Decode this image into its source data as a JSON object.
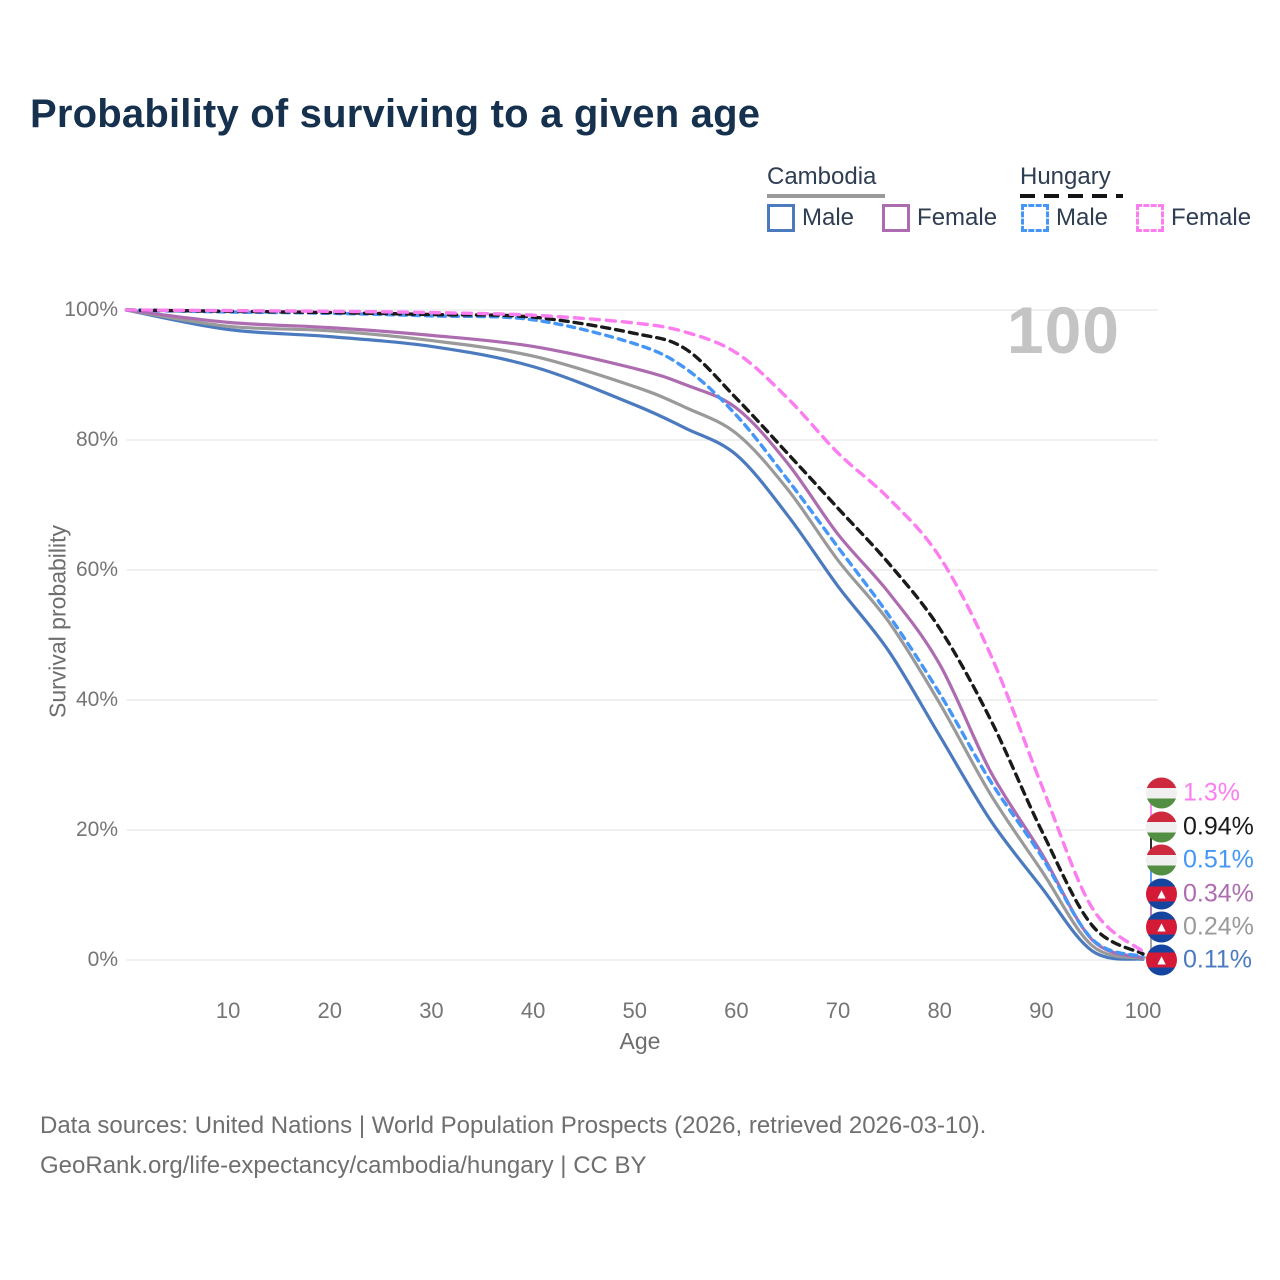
{
  "title": "Probability of surviving to a given age",
  "watermark_age": "100",
  "legend": {
    "groups": [
      {
        "name": "Cambodia",
        "underline_style": "solid",
        "items": [
          {
            "label": "Male",
            "color": "#4b7bbe",
            "dashed": false
          },
          {
            "label": "Female",
            "color": "#ad6cb0",
            "dashed": false
          }
        ]
      },
      {
        "name": "Hungary",
        "underline_style": "dashed",
        "items": [
          {
            "label": "Male",
            "color": "#4596f7",
            "dashed": true
          },
          {
            "label": "Female",
            "color": "#fb7df0",
            "dashed": true
          }
        ]
      }
    ]
  },
  "axes": {
    "x": {
      "label": "Age",
      "ticks": [
        10,
        20,
        30,
        40,
        50,
        60,
        70,
        80,
        90,
        100
      ],
      "range": [
        0,
        100
      ]
    },
    "y": {
      "label": "Survival probability",
      "ticks": [
        "0%",
        "20%",
        "40%",
        "60%",
        "80%",
        "100%"
      ],
      "range": [
        0,
        100
      ],
      "grid": true
    }
  },
  "chart_data": {
    "type": "line",
    "title": "Probability of surviving to a given age",
    "xlabel": "Age",
    "ylabel": "Survival probability",
    "xlim": [
      0,
      100
    ],
    "ylim": [
      0,
      100
    ],
    "grid": "horizontal-only",
    "legend_position": "top-right",
    "x": [
      0,
      10,
      20,
      30,
      40,
      50,
      55,
      60,
      65,
      70,
      75,
      80,
      85,
      90,
      95,
      100
    ],
    "series": [
      {
        "name": "Cambodia Male",
        "color": "#4b7bbe",
        "style": "solid",
        "values": [
          100,
          97.0,
          95.9,
          94.4,
          91.3,
          85.4,
          81.8,
          77.7,
          68.5,
          57.5,
          47.5,
          34.5,
          21.5,
          11.2,
          1.4,
          0.11
        ],
        "end_label": "0.11%",
        "flag": "cambodia"
      },
      {
        "name": "Cambodia Total",
        "color": "#9a9a9a",
        "style": "solid",
        "values": [
          100,
          97.5,
          96.8,
          95.3,
          92.9,
          88.2,
          85.0,
          81.0,
          72.5,
          61.5,
          52.0,
          39.5,
          25.5,
          13.8,
          2.2,
          0.24
        ],
        "end_label": "0.24%",
        "flag": "cambodia"
      },
      {
        "name": "Cambodia Female",
        "color": "#ad6cb0",
        "style": "solid",
        "values": [
          100,
          98.1,
          97.3,
          96.1,
          94.4,
          91.0,
          88.5,
          84.9,
          76.5,
          65.5,
          56.5,
          45.5,
          29.0,
          16.5,
          3.1,
          0.34
        ],
        "end_label": "0.34%",
        "flag": "cambodia"
      },
      {
        "name": "Hungary Male",
        "color": "#4596f7",
        "style": "dashed",
        "values": [
          100,
          99.7,
          99.5,
          99.1,
          98.5,
          94.8,
          91.0,
          83.8,
          74.0,
          63.5,
          53.0,
          41.0,
          27.5,
          16.0,
          3.2,
          0.51
        ],
        "end_label": "0.51%",
        "flag": "hungary"
      },
      {
        "name": "Hungary Total",
        "color": "#1a1a1a",
        "style": "dashed",
        "values": [
          100,
          99.8,
          99.6,
          99.3,
          98.9,
          96.4,
          94.0,
          86.4,
          78.0,
          69.5,
          61.0,
          51.0,
          37.0,
          20.0,
          5.3,
          0.94
        ],
        "end_label": "0.94%",
        "flag": "hungary"
      },
      {
        "name": "Hungary Female",
        "color": "#fb7df0",
        "style": "dashed",
        "values": [
          100,
          99.9,
          99.8,
          99.6,
          99.2,
          98.0,
          96.6,
          93.4,
          86.5,
          78.0,
          71.0,
          62.0,
          47.0,
          27.0,
          8.0,
          1.3
        ],
        "end_label": "1.3%",
        "flag": "hungary"
      }
    ]
  },
  "end_labels": [
    {
      "text": "1.3%",
      "color": "#fb7df0",
      "flag": "hungary"
    },
    {
      "text": "0.94%",
      "color": "#1a1a1a",
      "flag": "hungary"
    },
    {
      "text": "0.51%",
      "color": "#4596f7",
      "flag": "hungary"
    },
    {
      "text": "0.34%",
      "color": "#ad6cb0",
      "flag": "cambodia"
    },
    {
      "text": "0.24%",
      "color": "#9a9a9a",
      "flag": "cambodia"
    },
    {
      "text": "0.11%",
      "color": "#4b7bbe",
      "flag": "cambodia"
    }
  ],
  "footer": {
    "line1": "Data sources: United Nations | World Population Prospects (2026, retrieved 2026-03-10).",
    "line2": "GeoRank.org/life-expectancy/cambodia/hungary | CC BY"
  }
}
